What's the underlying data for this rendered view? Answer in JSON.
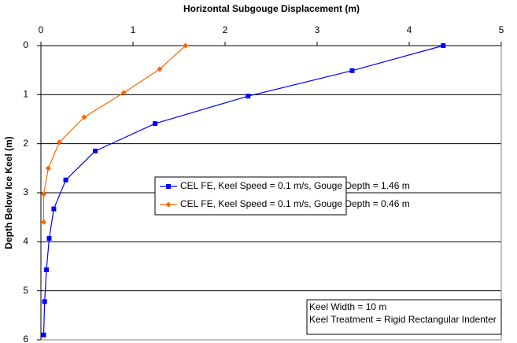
{
  "chart_data": {
    "type": "line",
    "title": "Horizontal Subgouge Displacement (m)",
    "y_label": "Depth Below Ice Keel (m)",
    "xlim": [
      0,
      5
    ],
    "xticks": [
      0,
      1,
      2,
      3,
      4,
      5
    ],
    "x_axis_position": "top",
    "ylim": [
      0,
      6
    ],
    "yticks": [
      0,
      1,
      2,
      3,
      4,
      5,
      6
    ],
    "y_inverted": true,
    "grid": true,
    "series": [
      {
        "name": "CEL FE, Keel Speed = 0.1 m/s, Gouge Depth = 1.46 m",
        "color": "#0000ff",
        "marker": "square",
        "x": [
          4.37,
          3.38,
          2.25,
          1.24,
          0.59,
          0.27,
          0.14,
          0.09,
          0.06,
          0.04,
          0.03
        ],
        "values": [
          0,
          0.51,
          1.03,
          1.59,
          2.15,
          2.74,
          3.33,
          3.93,
          4.57,
          5.22,
          5.9
        ]
      },
      {
        "name": "CEL FE, Keel Speed = 0.1 m/s, Gouge Depth = 0.46 m",
        "color": "#ff6600",
        "marker": "diamond",
        "x": [
          1.57,
          1.29,
          0.9,
          0.47,
          0.2,
          0.08,
          0.03,
          0.03
        ],
        "values": [
          0,
          0.48,
          0.96,
          1.46,
          1.97,
          2.5,
          3.03,
          3.6
        ]
      }
    ],
    "annotations": [
      "Keel Width = 10 m",
      "Keel Treatment = Rigid Rectangular Indenter"
    ]
  }
}
